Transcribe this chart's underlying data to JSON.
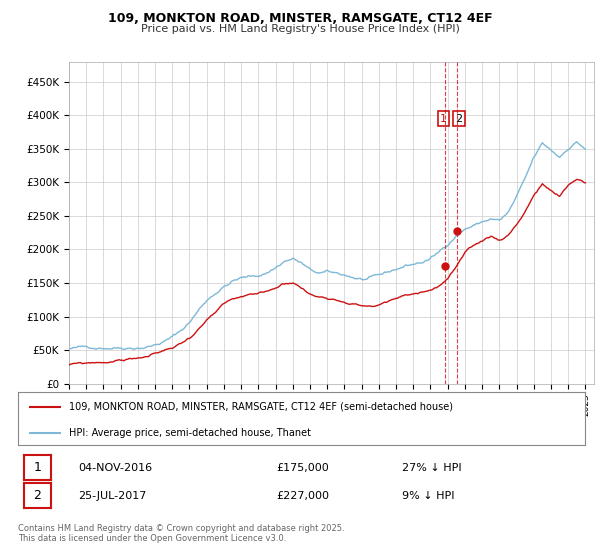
{
  "title1": "109, MONKTON ROAD, MINSTER, RAMSGATE, CT12 4EF",
  "title2": "Price paid vs. HM Land Registry's House Price Index (HPI)",
  "xlim_start": 1995.0,
  "xlim_end": 2025.5,
  "ylim_min": 0,
  "ylim_max": 480000,
  "yticks": [
    0,
    50000,
    100000,
    150000,
    200000,
    250000,
    300000,
    350000,
    400000,
    450000
  ],
  "ytick_labels": [
    "£0",
    "£50K",
    "£100K",
    "£150K",
    "£200K",
    "£250K",
    "£300K",
    "£350K",
    "£400K",
    "£450K"
  ],
  "hpi_color": "#7db8d8",
  "price_color": "#cc1111",
  "vline_color": "#cc1111",
  "purchase1_date": 2016.843,
  "purchase1_price": 175000,
  "purchase2_date": 2017.562,
  "purchase2_price": 227000,
  "legend_label1": "109, MONKTON ROAD, MINSTER, RAMSGATE, CT12 4EF (semi-detached house)",
  "legend_label2": "HPI: Average price, semi-detached house, Thanet",
  "table_row1": [
    "1",
    "04-NOV-2016",
    "£175,000",
    "27% ↓ HPI"
  ],
  "table_row2": [
    "2",
    "25-JUL-2017",
    "£227,000",
    "9% ↓ HPI"
  ],
  "footer": "Contains HM Land Registry data © Crown copyright and database right 2025.\nThis data is licensed under the Open Government Licence v3.0.",
  "background_color": "#ffffff",
  "grid_color": "#cccccc",
  "hpi_data_t": [
    1995.0,
    1995.5,
    1996.0,
    1996.5,
    1997.0,
    1997.5,
    1998.0,
    1998.5,
    1999.0,
    1999.5,
    2000.0,
    2000.5,
    2001.0,
    2001.5,
    2002.0,
    2002.5,
    2003.0,
    2003.5,
    2004.0,
    2004.5,
    2005.0,
    2005.5,
    2006.0,
    2006.5,
    2007.0,
    2007.5,
    2008.0,
    2008.5,
    2009.0,
    2009.5,
    2010.0,
    2010.5,
    2011.0,
    2011.5,
    2012.0,
    2012.5,
    2013.0,
    2013.5,
    2014.0,
    2014.5,
    2015.0,
    2015.5,
    2016.0,
    2016.5,
    2017.0,
    2017.5,
    2018.0,
    2018.5,
    2019.0,
    2019.5,
    2020.0,
    2020.5,
    2021.0,
    2021.5,
    2022.0,
    2022.5,
    2023.0,
    2023.5,
    2024.0,
    2024.5,
    2025.0
  ],
  "hpi_data_v": [
    48000,
    48500,
    49000,
    50000,
    51500,
    53000,
    54000,
    55500,
    57000,
    59000,
    62000,
    67000,
    73000,
    82000,
    95000,
    112000,
    128000,
    140000,
    150000,
    158000,
    162000,
    163000,
    165000,
    170000,
    178000,
    188000,
    192000,
    185000,
    173000,
    168000,
    168000,
    165000,
    163000,
    160000,
    157000,
    157000,
    158000,
    162000,
    167000,
    172000,
    175000,
    178000,
    183000,
    192000,
    205000,
    220000,
    230000,
    235000,
    240000,
    245000,
    242000,
    252000,
    275000,
    300000,
    330000,
    350000,
    340000,
    330000,
    345000,
    355000,
    345000
  ],
  "price_data_t": [
    1995.0,
    1995.5,
    1996.0,
    1996.5,
    1997.0,
    1997.5,
    1998.0,
    1998.5,
    1999.0,
    1999.5,
    2000.0,
    2000.5,
    2001.0,
    2001.5,
    2002.0,
    2002.5,
    2003.0,
    2003.5,
    2004.0,
    2004.5,
    2005.0,
    2005.5,
    2006.0,
    2006.5,
    2007.0,
    2007.5,
    2008.0,
    2008.5,
    2009.0,
    2009.5,
    2010.0,
    2010.5,
    2011.0,
    2011.5,
    2012.0,
    2012.5,
    2013.0,
    2013.5,
    2014.0,
    2014.5,
    2015.0,
    2015.5,
    2016.0,
    2016.5,
    2017.0,
    2017.5,
    2018.0,
    2018.5,
    2019.0,
    2019.5,
    2020.0,
    2020.5,
    2021.0,
    2021.5,
    2022.0,
    2022.5,
    2023.0,
    2023.5,
    2024.0,
    2024.5,
    2025.0
  ],
  "price_data_v": [
    33000,
    33500,
    34000,
    35000,
    36000,
    37500,
    39000,
    41000,
    43000,
    45000,
    48000,
    52000,
    57000,
    63000,
    72000,
    85000,
    98000,
    108000,
    118000,
    124000,
    126000,
    127000,
    128000,
    132000,
    138000,
    145000,
    148000,
    140000,
    130000,
    126000,
    127000,
    125000,
    124000,
    122000,
    119000,
    119000,
    120000,
    124000,
    128000,
    132000,
    135000,
    138000,
    141000,
    148000,
    158000,
    175000,
    192000,
    200000,
    208000,
    215000,
    210000,
    218000,
    235000,
    255000,
    280000,
    295000,
    285000,
    275000,
    290000,
    300000,
    295000
  ]
}
